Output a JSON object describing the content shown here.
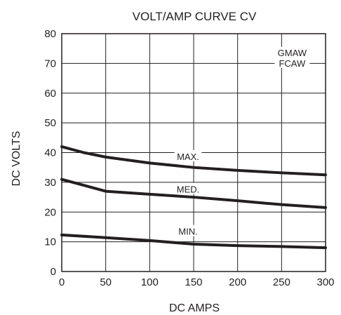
{
  "chart_data": {
    "type": "line",
    "title": "VOLT/AMP CURVE CV",
    "xlabel": "DC AMPS",
    "ylabel": "DC VOLTS",
    "xlim": [
      0,
      300
    ],
    "ylim": [
      0,
      80
    ],
    "xticks": [
      0,
      50,
      100,
      150,
      200,
      250,
      300
    ],
    "yticks": [
      0,
      10,
      20,
      30,
      40,
      50,
      60,
      70,
      80
    ],
    "grid": true,
    "annotation": [
      "GMAW",
      "FCAW"
    ],
    "series": [
      {
        "name": "MAX.",
        "label_at": [
          150,
          38.5
        ],
        "x": [
          0,
          25,
          50,
          100,
          150,
          200,
          250,
          300
        ],
        "y": [
          42,
          40,
          38.5,
          36.5,
          35,
          34,
          33.2,
          32.5
        ]
      },
      {
        "name": "MED.",
        "label_at": [
          150,
          27.5
        ],
        "x": [
          0,
          25,
          50,
          100,
          150,
          200,
          250,
          300
        ],
        "y": [
          31,
          29,
          27,
          26,
          25,
          23.8,
          22.5,
          21.5
        ]
      },
      {
        "name": "MIN.",
        "label_at": [
          150,
          13.3
        ],
        "x": [
          0,
          50,
          100,
          150,
          200,
          250,
          300
        ],
        "y": [
          12.3,
          11.4,
          10.4,
          9.2,
          8.7,
          8.4,
          8.0
        ]
      }
    ]
  }
}
